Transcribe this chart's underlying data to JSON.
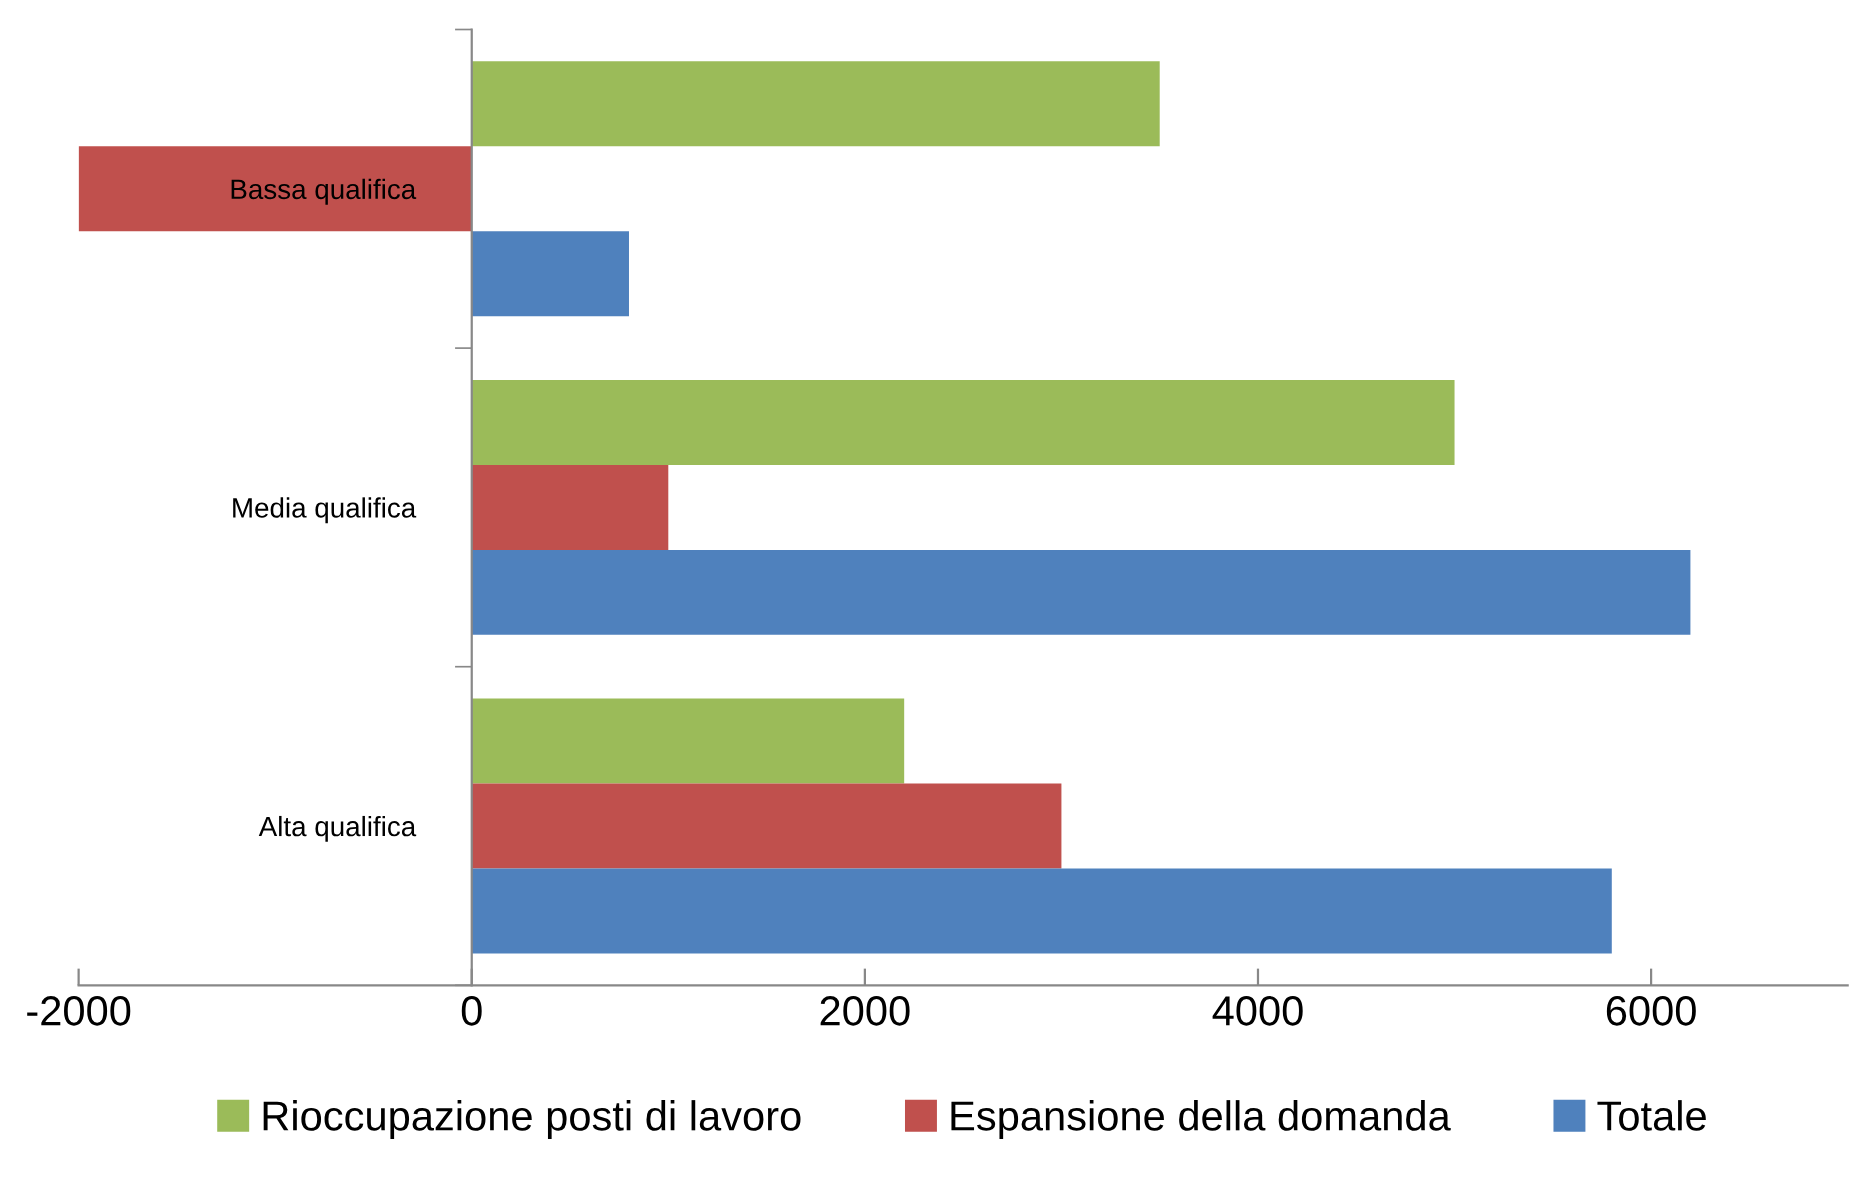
{
  "chart_data": {
    "type": "bar",
    "orientation": "horizontal",
    "categories": [
      "Bassa qualifica",
      "Media qualifica",
      "Alta qualifica"
    ],
    "series": [
      {
        "name": "Rioccupazione posti di lavoro",
        "color": "#9bbb59",
        "values": [
          3500,
          5000,
          2200
        ]
      },
      {
        "name": "Espansione della domanda",
        "color": "#c0504d",
        "values": [
          -2000,
          1000,
          3000
        ]
      },
      {
        "name": "Totale",
        "color": "#4f81bd",
        "values": [
          800,
          6200,
          5800
        ]
      }
    ],
    "xlim": [
      -2000,
      7000
    ],
    "xticks": [
      -2000,
      0,
      2000,
      4000,
      6000
    ],
    "grid": false,
    "legend": "bottom"
  }
}
